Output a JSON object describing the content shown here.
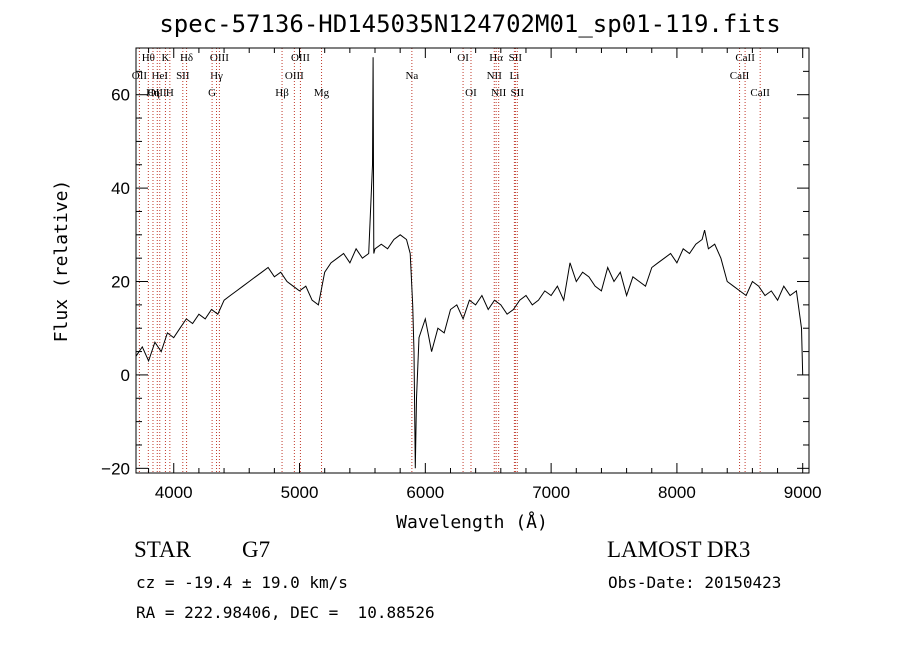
{
  "chart_data": {
    "type": "line",
    "title": "spec-57136-HD145035N124702M01_sp01-119.fits",
    "xlabel": "Wavelength (Å)",
    "ylabel": "Flux (relative)",
    "xlim": [
      3700,
      9050
    ],
    "ylim": [
      -21,
      70
    ],
    "xticks": [
      4000,
      5000,
      6000,
      7000,
      8000,
      9000
    ],
    "yticks": [
      -20,
      0,
      20,
      40,
      60
    ],
    "grid": false,
    "line_color": "#000000",
    "marker_color": "#c0392b",
    "series": [
      {
        "x": [
          3700,
          3750,
          3800,
          3850,
          3900,
          3950,
          4000,
          4050,
          4100,
          4150,
          4200,
          4250,
          4300,
          4350,
          4400,
          4450,
          4500,
          4550,
          4600,
          4650,
          4700,
          4750,
          4800,
          4850,
          4900,
          4950,
          5000,
          5050,
          5100,
          5150,
          5200,
          5250,
          5300,
          5350,
          5400,
          5450,
          5500,
          5550,
          5580,
          5585,
          5590,
          5600,
          5650,
          5700,
          5750,
          5800,
          5850,
          5880,
          5900,
          5910,
          5920,
          5930,
          5950,
          6000,
          6050,
          6100,
          6150,
          6200,
          6250,
          6300,
          6350,
          6400,
          6450,
          6500,
          6550,
          6600,
          6650,
          6700,
          6750,
          6800,
          6850,
          6900,
          6950,
          7000,
          7050,
          7100,
          7150,
          7200,
          7250,
          7300,
          7350,
          7400,
          7450,
          7500,
          7550,
          7600,
          7650,
          7700,
          7750,
          7800,
          7850,
          7900,
          7950,
          8000,
          8050,
          8100,
          8150,
          8200,
          8220,
          8250,
          8300,
          8350,
          8400,
          8450,
          8500,
          8550,
          8600,
          8650,
          8700,
          8750,
          8800,
          8850,
          8900,
          8950,
          8990,
          9000
        ],
        "y": [
          4,
          6,
          3,
          7,
          5,
          9,
          8,
          10,
          12,
          11,
          13,
          12,
          14,
          13,
          16,
          17,
          18,
          19,
          20,
          21,
          22,
          23,
          21,
          22,
          20,
          19,
          18,
          19,
          16,
          15,
          22,
          24,
          25,
          26,
          24,
          27,
          25,
          26,
          45,
          68,
          26,
          27,
          28,
          27,
          29,
          30,
          29,
          26,
          15,
          5,
          -20,
          -5,
          8,
          12,
          5,
          10,
          9,
          14,
          15,
          12,
          16,
          15,
          17,
          14,
          16,
          15,
          13,
          14,
          16,
          17,
          15,
          16,
          18,
          17,
          19,
          16,
          24,
          20,
          22,
          21,
          19,
          18,
          23,
          20,
          22,
          17,
          21,
          20,
          19,
          23,
          24,
          25,
          26,
          24,
          27,
          26,
          28,
          29,
          31,
          27,
          28,
          25,
          20,
          19,
          18,
          17,
          20,
          19,
          17,
          18,
          16,
          19,
          17,
          18,
          10,
          0
        ]
      }
    ],
    "line_markers": [
      {
        "label": "Hθ",
        "x": 3798,
        "row": 0
      },
      {
        "label": "OII",
        "x": 3727,
        "row": 1
      },
      {
        "label": "OIII",
        "x": 3869,
        "row": 2
      },
      {
        "label": "K",
        "x": 3934,
        "row": 0
      },
      {
        "label": "HeI",
        "x": 3889,
        "row": 1
      },
      {
        "label": "Hη",
        "x": 3835,
        "row": 2
      },
      {
        "label": "H",
        "x": 3969,
        "row": 2
      },
      {
        "label": "SII",
        "x": 4072,
        "row": 1
      },
      {
        "label": "Hδ",
        "x": 4102,
        "row": 0
      },
      {
        "label": "OIII",
        "x": 4363,
        "row": 0
      },
      {
        "label": "Hγ",
        "x": 4340,
        "row": 1
      },
      {
        "label": "G",
        "x": 4305,
        "row": 2
      },
      {
        "label": "Hβ",
        "x": 4861,
        "row": 2
      },
      {
        "label": "OIII",
        "x": 4959,
        "row": 1
      },
      {
        "label": "OIII",
        "x": 5007,
        "row": 0
      },
      {
        "label": "Mg",
        "x": 5175,
        "row": 2
      },
      {
        "label": "Na",
        "x": 5893,
        "row": 1
      },
      {
        "label": "OI",
        "x": 6300,
        "row": 0
      },
      {
        "label": "OI",
        "x": 6363,
        "row": 2
      },
      {
        "label": "Hα",
        "x": 6563,
        "row": 0
      },
      {
        "label": "NII",
        "x": 6548,
        "row": 1
      },
      {
        "label": "NII",
        "x": 6583,
        "row": 2
      },
      {
        "label": "SII",
        "x": 6716,
        "row": 0
      },
      {
        "label": "Li",
        "x": 6708,
        "row": 1
      },
      {
        "label": "SII",
        "x": 6731,
        "row": 2
      },
      {
        "label": "CaII",
        "x": 8542,
        "row": 0
      },
      {
        "label": "CaII",
        "x": 8498,
        "row": 1
      },
      {
        "label": "CaII",
        "x": 8662,
        "row": 2
      }
    ]
  },
  "info": {
    "class_label": "STAR",
    "subclass_label": "G7",
    "survey_label": "LAMOST DR3",
    "cz_text": "cz = -19.4 ± 19.0 km/s",
    "obs_date_text": "Obs-Date: 20150423",
    "coords_text": "RA = 222.98406, DEC =  10.88526"
  }
}
